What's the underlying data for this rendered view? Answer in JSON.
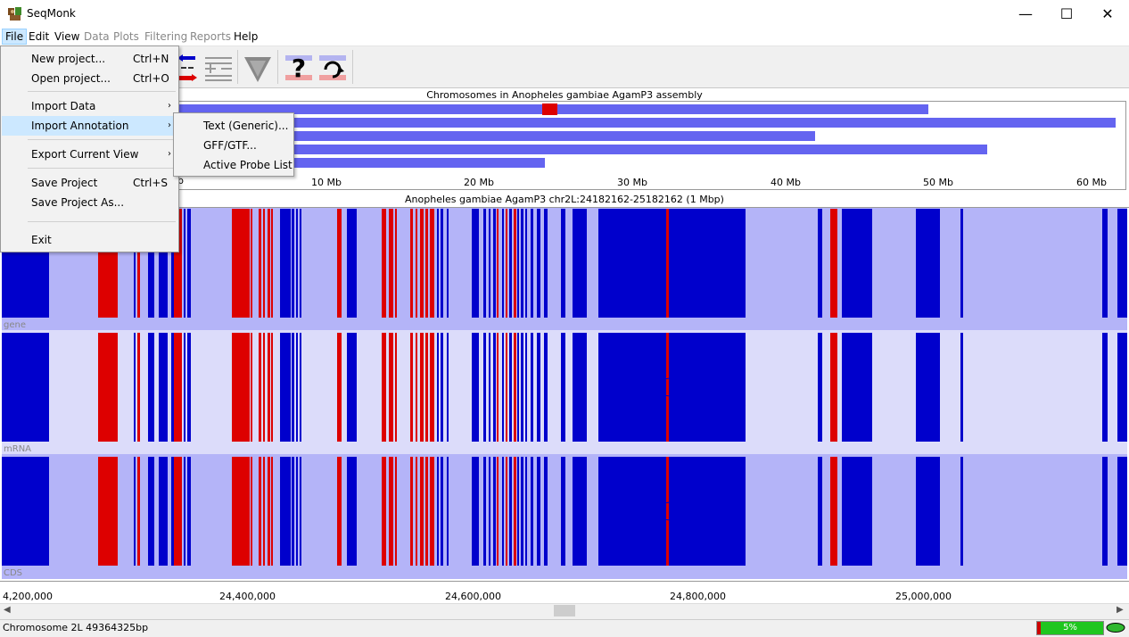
{
  "window": {
    "title": "SeqMonk",
    "minimize": "—",
    "maximize": "☐",
    "close": "✕"
  },
  "menubar": {
    "items": [
      {
        "label": "File",
        "enabled": true,
        "active": true
      },
      {
        "label": "Edit",
        "enabled": true
      },
      {
        "label": "View",
        "enabled": true
      },
      {
        "label": "Data",
        "enabled": false
      },
      {
        "label": "Plots",
        "enabled": false
      },
      {
        "label": "Filtering",
        "enabled": false
      },
      {
        "label": "Reports",
        "enabled": false
      },
      {
        "label": "Help",
        "enabled": true
      }
    ]
  },
  "file_menu": {
    "items": [
      {
        "label": "New project...",
        "shortcut": "Ctrl+N"
      },
      {
        "label": "Open project...",
        "shortcut": "Ctrl+O"
      },
      {
        "label": "Import Data",
        "arrow": "›"
      },
      {
        "label": "Import Annotation",
        "arrow": "›"
      },
      {
        "label": "Export Current View",
        "arrow": "›"
      },
      {
        "label": "Save Project",
        "shortcut": "Ctrl+S"
      },
      {
        "label": "Save Project As..."
      },
      {
        "label": "Exit"
      }
    ]
  },
  "annotation_submenu": {
    "items": [
      {
        "label": "Text (Generic)..."
      },
      {
        "label": "GFF/GTF..."
      },
      {
        "label": "Active Probe List"
      }
    ]
  },
  "chromosome_view": {
    "title": "Chromosomes in Anopheles gambiae AgamP3 assembly",
    "axis_labels": [
      "b",
      "10 Mb",
      "20 Mb",
      "30 Mb",
      "40 Mb",
      "50 Mb",
      "60 Mb"
    ]
  },
  "region_view": {
    "title": "Anopheles gambiae AgamP3 chr2L:24182162-25182162 (1 Mbp)",
    "tracks": [
      "gene",
      "mRNA",
      "CDS"
    ],
    "axis_labels": [
      "4,200,000",
      "24,400,000",
      "24,600,000",
      "24,800,000",
      "25,000,000"
    ]
  },
  "status": {
    "text": "Chromosome 2L 49364325bp",
    "progress_label": "5%",
    "progress": 0.05
  },
  "colors": {
    "feature_forward": "#0000cc",
    "feature_reverse": "#dd0000",
    "track_dark": "#b4b4f8",
    "track_light": "#dcdcfa",
    "chromosome": "#6464f0",
    "highlight": "#cce8ff"
  }
}
